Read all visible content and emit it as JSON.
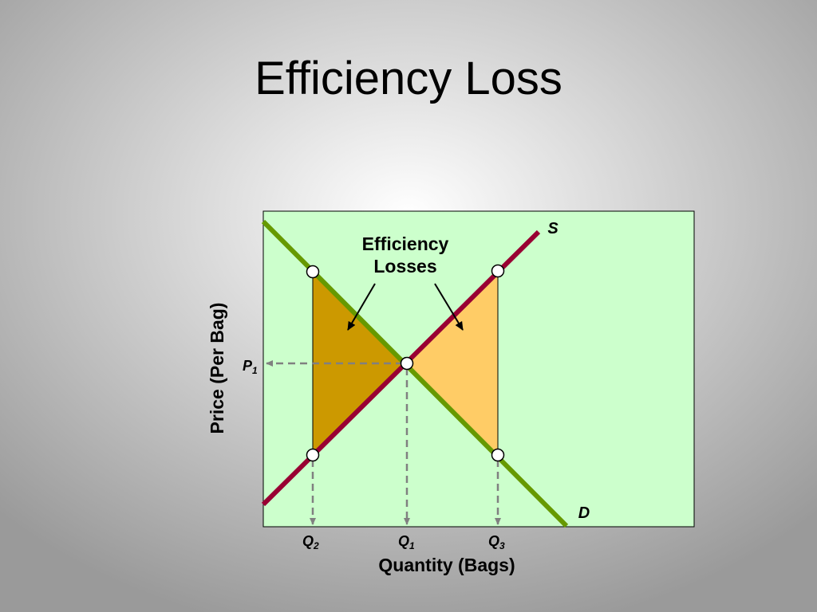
{
  "header": {
    "title": "Efficiency Loss"
  },
  "diagram": {
    "annotation": {
      "line1": "Efficiency",
      "line2": "Losses"
    },
    "supply_label": "S",
    "demand_label": "D",
    "price_marker": {
      "letter": "P",
      "sub": "1"
    },
    "quantity_markers": [
      {
        "letter": "Q",
        "sub": "2"
      },
      {
        "letter": "Q",
        "sub": "1"
      },
      {
        "letter": "Q",
        "sub": "3"
      }
    ],
    "y_axis_label": "Price  (Per Bag)",
    "x_axis_label": "Quantity (Bags)"
  }
}
